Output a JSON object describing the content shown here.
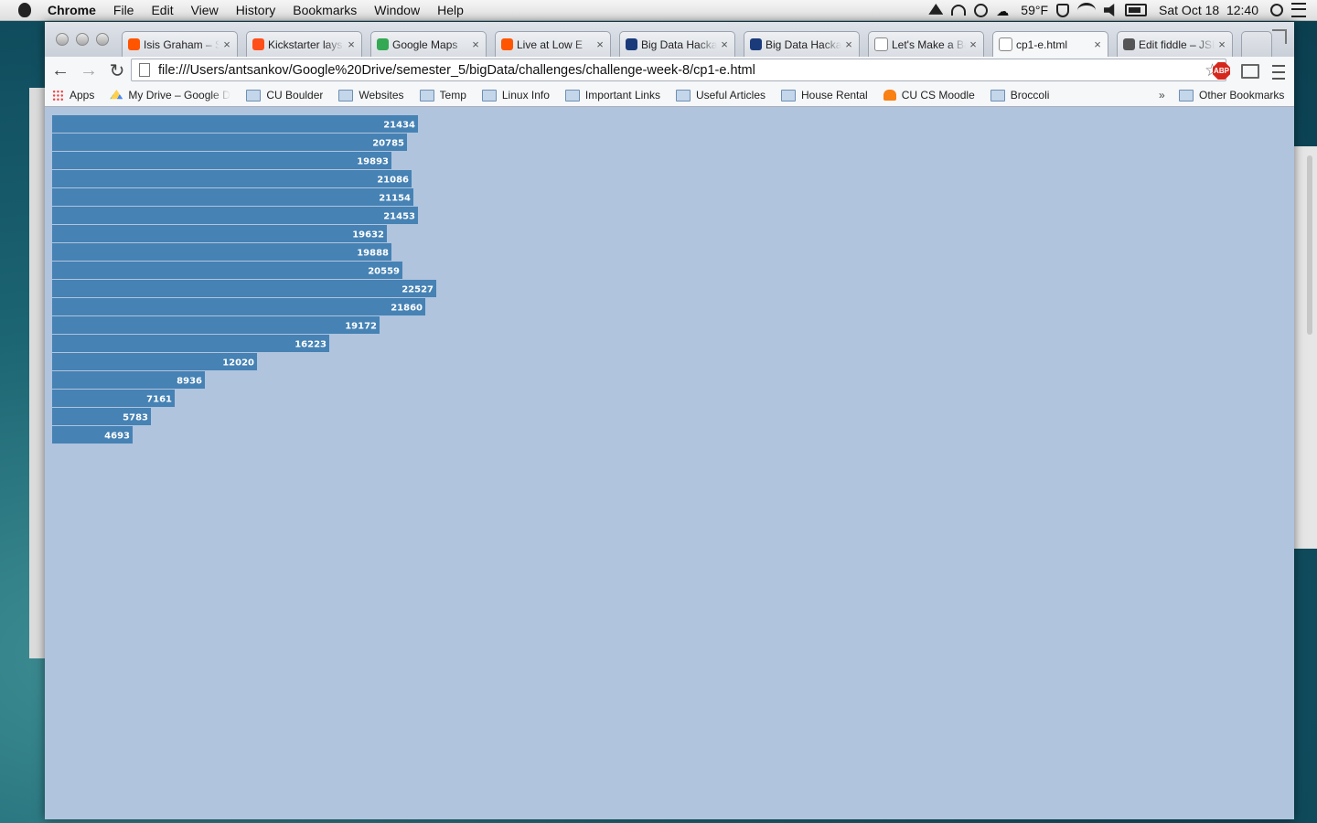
{
  "menubar": {
    "app_name": "Chrome",
    "items": [
      "File",
      "Edit",
      "View",
      "History",
      "Bookmarks",
      "Window",
      "Help"
    ],
    "weather": "59°F",
    "clock": "Sat Oct 18  12:40"
  },
  "tabs": [
    {
      "title": "Isis Graham – S",
      "favicon_color": "#ff5500",
      "active": false
    },
    {
      "title": "Kickstarter lays",
      "favicon_color": "#ff4e1a",
      "active": false
    },
    {
      "title": "Google Maps",
      "favicon_color": "#34a853",
      "active": false
    },
    {
      "title": "Live at Low E",
      "favicon_color": "#ff5500",
      "active": false
    },
    {
      "title": "Big Data Hackat",
      "favicon_color": "#1a3a7a",
      "active": false
    },
    {
      "title": "Big Data Hackat",
      "favicon_color": "#1a3a7a",
      "active": false
    },
    {
      "title": "Let's Make a Ba",
      "favicon_color": "#ffffff",
      "active": false
    },
    {
      "title": "cp1-e.html",
      "favicon_color": "#ffffff",
      "active": true
    },
    {
      "title": "Edit fiddle – JSFi",
      "favicon_color": "#555555",
      "active": false
    }
  ],
  "toolbar": {
    "url": "file:///Users/antsankov/Google%20Drive/semester_5/bigData/challenges/challenge-week-8/cp1-e.html",
    "abp_label": "ABP"
  },
  "bookmarks": {
    "items": [
      {
        "label": "Apps",
        "icon": "apps-grid-icon"
      },
      {
        "label": "My Drive – Google D",
        "icon": "google-drive-icon"
      },
      {
        "label": "CU Boulder",
        "icon": "folder-icon"
      },
      {
        "label": "Websites",
        "icon": "folder-icon"
      },
      {
        "label": "Temp",
        "icon": "folder-icon"
      },
      {
        "label": "Linux Info",
        "icon": "folder-icon"
      },
      {
        "label": "Important Links",
        "icon": "folder-icon"
      },
      {
        "label": "Useful Articles",
        "icon": "folder-icon"
      },
      {
        "label": "House Rental",
        "icon": "folder-icon"
      },
      {
        "label": "CU CS Moodle",
        "icon": "moodle-icon"
      },
      {
        "label": "Broccoli",
        "icon": "folder-icon"
      }
    ],
    "overflow": "»",
    "other": "Other Bookmarks"
  },
  "chart_data": {
    "type": "bar",
    "orientation": "horizontal",
    "values": [
      21434,
      20785,
      19893,
      21086,
      21154,
      21453,
      19632,
      19888,
      20559,
      22527,
      21860,
      19172,
      16223,
      12020,
      8936,
      7161,
      5783,
      4693
    ],
    "bar_color": "#4682b4",
    "label_color": "#ffffff",
    "background": "#b0c4de"
  }
}
